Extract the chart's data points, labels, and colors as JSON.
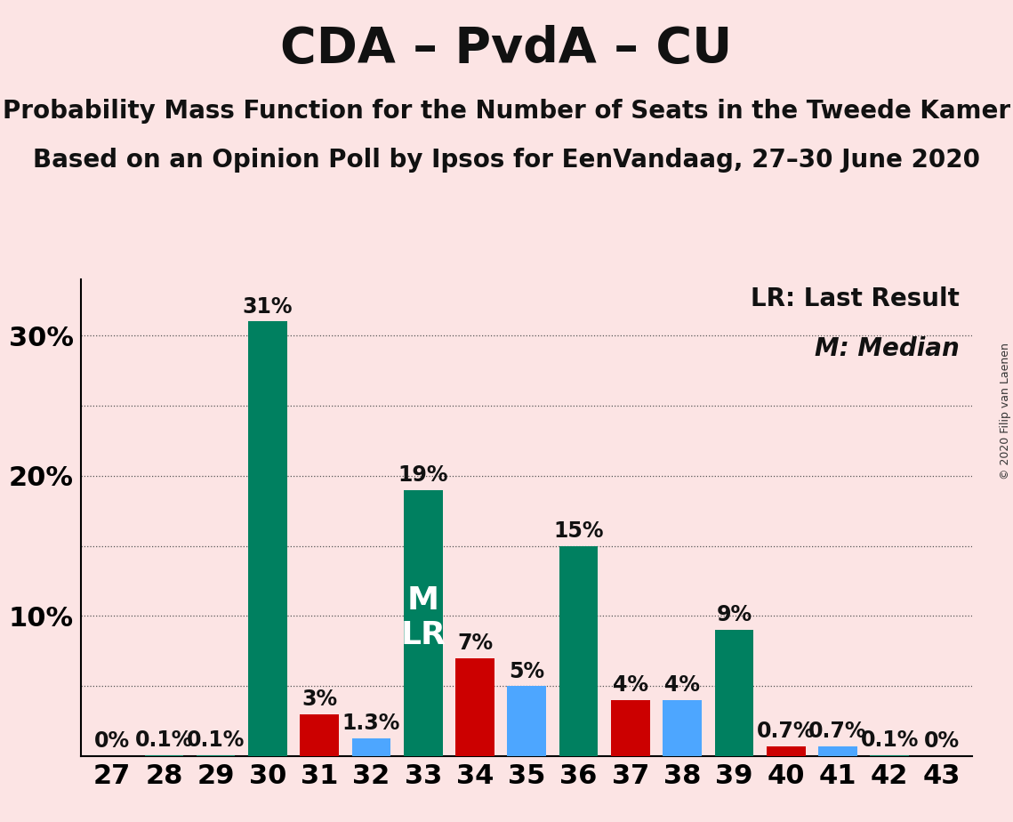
{
  "title": "CDA – PvdA – CU",
  "subtitle1": "Probability Mass Function for the Number of Seats in the Tweede Kamer",
  "subtitle2": "Based on an Opinion Poll by Ipsos for EenVandaag, 27–30 June 2020",
  "copyright": "© 2020 Filip van Laenen",
  "legend_lr": "LR: Last Result",
  "legend_m": "M: Median",
  "background_color": "#fce4e4",
  "seats": [
    27,
    28,
    29,
    30,
    31,
    32,
    33,
    34,
    35,
    36,
    37,
    38,
    39,
    40,
    41,
    42,
    43
  ],
  "pmf_values": [
    0.0,
    0.1,
    0.1,
    31.0,
    3.0,
    1.3,
    19.0,
    7.0,
    5.0,
    15.0,
    4.0,
    4.0,
    9.0,
    0.7,
    0.7,
    0.1,
    0.0
  ],
  "pmf_labels": [
    "0%",
    "0.1%",
    "0.1%",
    "31%",
    "3%",
    "1.3%",
    "19%",
    "7%",
    "5%",
    "15%",
    "4%",
    "4%",
    "9%",
    "0.7%",
    "0.7%",
    "0.1%",
    "0%"
  ],
  "bar_colors": [
    "#008060",
    "#008060",
    "#008060",
    "#008060",
    "#cc0000",
    "#4da6ff",
    "#008060",
    "#cc0000",
    "#4da6ff",
    "#008060",
    "#cc0000",
    "#4da6ff",
    "#008060",
    "#cc0000",
    "#4da6ff",
    "#008060",
    "#008060"
  ],
  "median_seat": 33,
  "lr_seat": 33,
  "ylim": [
    0,
    34
  ],
  "yticks": [
    10,
    20,
    30
  ],
  "grid_dotted": [
    5,
    10,
    15,
    20,
    25,
    30
  ],
  "grid_solid": [],
  "grid_color": "#555555",
  "bar_width": 0.75,
  "tick_fontsize": 22,
  "title_fontsize": 40,
  "subtitle_fontsize": 20,
  "bar_label_fontsize": 17,
  "annotation_fontsize": 26,
  "legend_fontsize": 20,
  "copyright_fontsize": 9
}
